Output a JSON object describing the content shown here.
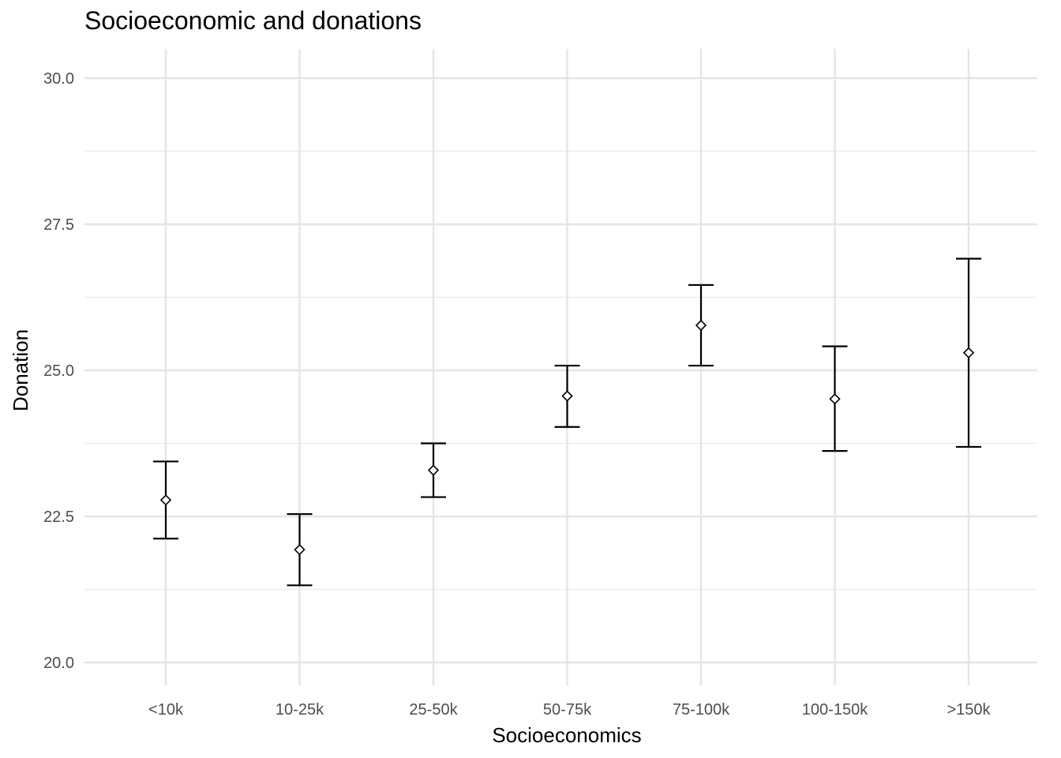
{
  "chart_data": {
    "type": "scatter",
    "title": "Socioeconomic and donations",
    "xlabel": "Socioeconomics",
    "ylabel": "Donation",
    "categories": [
      "<10k",
      "10-25k",
      "25-50k",
      "50-75k",
      "75-100k",
      "100-150k",
      ">150k"
    ],
    "series": [
      {
        "values": [
          22.78,
          21.93,
          23.29,
          24.56,
          25.77,
          24.51,
          25.3
        ],
        "error_low": [
          22.12,
          21.32,
          22.83,
          24.03,
          25.08,
          23.62,
          23.69
        ],
        "error_high": [
          23.44,
          22.54,
          23.75,
          25.08,
          26.46,
          25.41,
          26.91
        ]
      }
    ],
    "y_ticks": [
      20.0,
      22.5,
      25.0,
      27.5,
      30.0
    ],
    "y_tick_labels": [
      "20.0",
      "22.5",
      "25.0",
      "27.5",
      "30.0"
    ],
    "ylim": [
      19.6,
      30.5
    ],
    "grid": true,
    "marker": "diamond-open",
    "theme": "minimal"
  }
}
